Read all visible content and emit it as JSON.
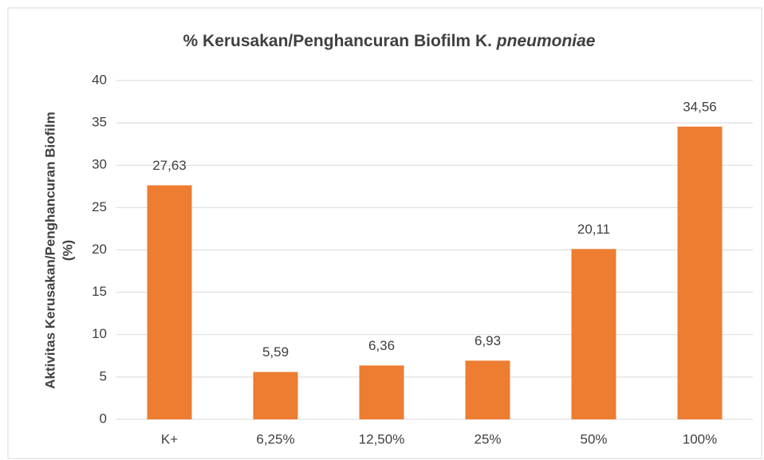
{
  "chart_data": {
    "type": "bar",
    "title": "% Kerusakan/Penghancuran Biofilm K.",
    "title_italic": "pneumoniae",
    "ylabel": [
      "Aktivitas Kerusakan/Penghancuran Biofilm",
      "(%)"
    ],
    "categories": [
      "K+",
      "6,25%",
      "12,50%",
      "25%",
      "50%",
      "100%"
    ],
    "values": [
      27.63,
      5.59,
      6.36,
      6.93,
      20.11,
      34.56
    ],
    "value_labels": [
      "27,63",
      "5,59",
      "6,36",
      "6,93",
      "20,11",
      "34,56"
    ],
    "color": "#ed7d31",
    "ylim": [
      0,
      40
    ],
    "yticks": [
      0,
      5,
      10,
      15,
      20,
      25,
      30,
      35,
      40
    ],
    "grid": true
  }
}
